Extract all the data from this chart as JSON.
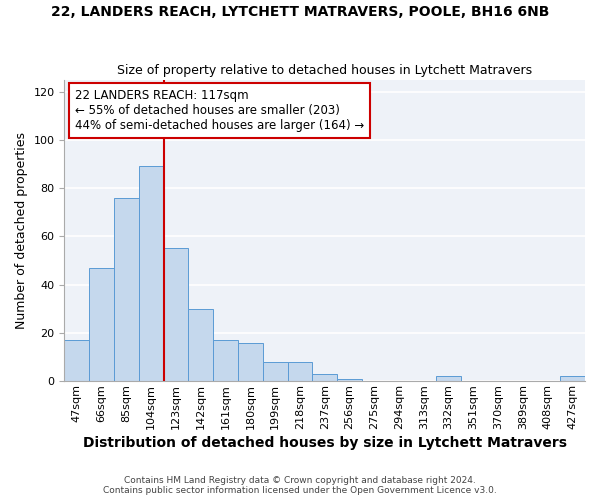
{
  "title_line1": "22, LANDERS REACH, LYTCHETT MATRAVERS, POOLE, BH16 6NB",
  "title_line2": "Size of property relative to detached houses in Lytchett Matravers",
  "xlabel": "Distribution of detached houses by size in Lytchett Matravers",
  "ylabel": "Number of detached properties",
  "footnote1": "Contains HM Land Registry data © Crown copyright and database right 2024.",
  "footnote2": "Contains public sector information licensed under the Open Government Licence v3.0.",
  "bar_labels": [
    "47sqm",
    "66sqm",
    "85sqm",
    "104sqm",
    "123sqm",
    "142sqm",
    "161sqm",
    "180sqm",
    "199sqm",
    "218sqm",
    "237sqm",
    "256sqm",
    "275sqm",
    "294sqm",
    "313sqm",
    "332sqm",
    "351sqm",
    "370sqm",
    "389sqm",
    "408sqm",
    "427sqm"
  ],
  "bar_values": [
    17,
    47,
    76,
    89,
    55,
    30,
    17,
    16,
    8,
    8,
    3,
    1,
    0,
    0,
    0,
    2,
    0,
    0,
    0,
    0,
    2
  ],
  "bar_color": "#c5d8ed",
  "bar_edge_color": "#5b9bd5",
  "property_label": "22 LANDERS REACH: 117sqm",
  "annotation_line1": "← 55% of detached houses are smaller (203)",
  "annotation_line2": "44% of semi-detached houses are larger (164) →",
  "vline_color": "#cc0000",
  "annotation_box_color": "#cc0000",
  "ylim": [
    0,
    125
  ],
  "yticks": [
    0,
    20,
    40,
    60,
    80,
    100,
    120
  ],
  "background_color": "#eef2f8",
  "grid_color": "#ffffff",
  "title_fontsize": 10,
  "subtitle_fontsize": 9,
  "xlabel_fontsize": 10,
  "ylabel_fontsize": 9,
  "tick_fontsize": 8,
  "annotation_fontsize": 8.5,
  "footnote_fontsize": 6.5
}
